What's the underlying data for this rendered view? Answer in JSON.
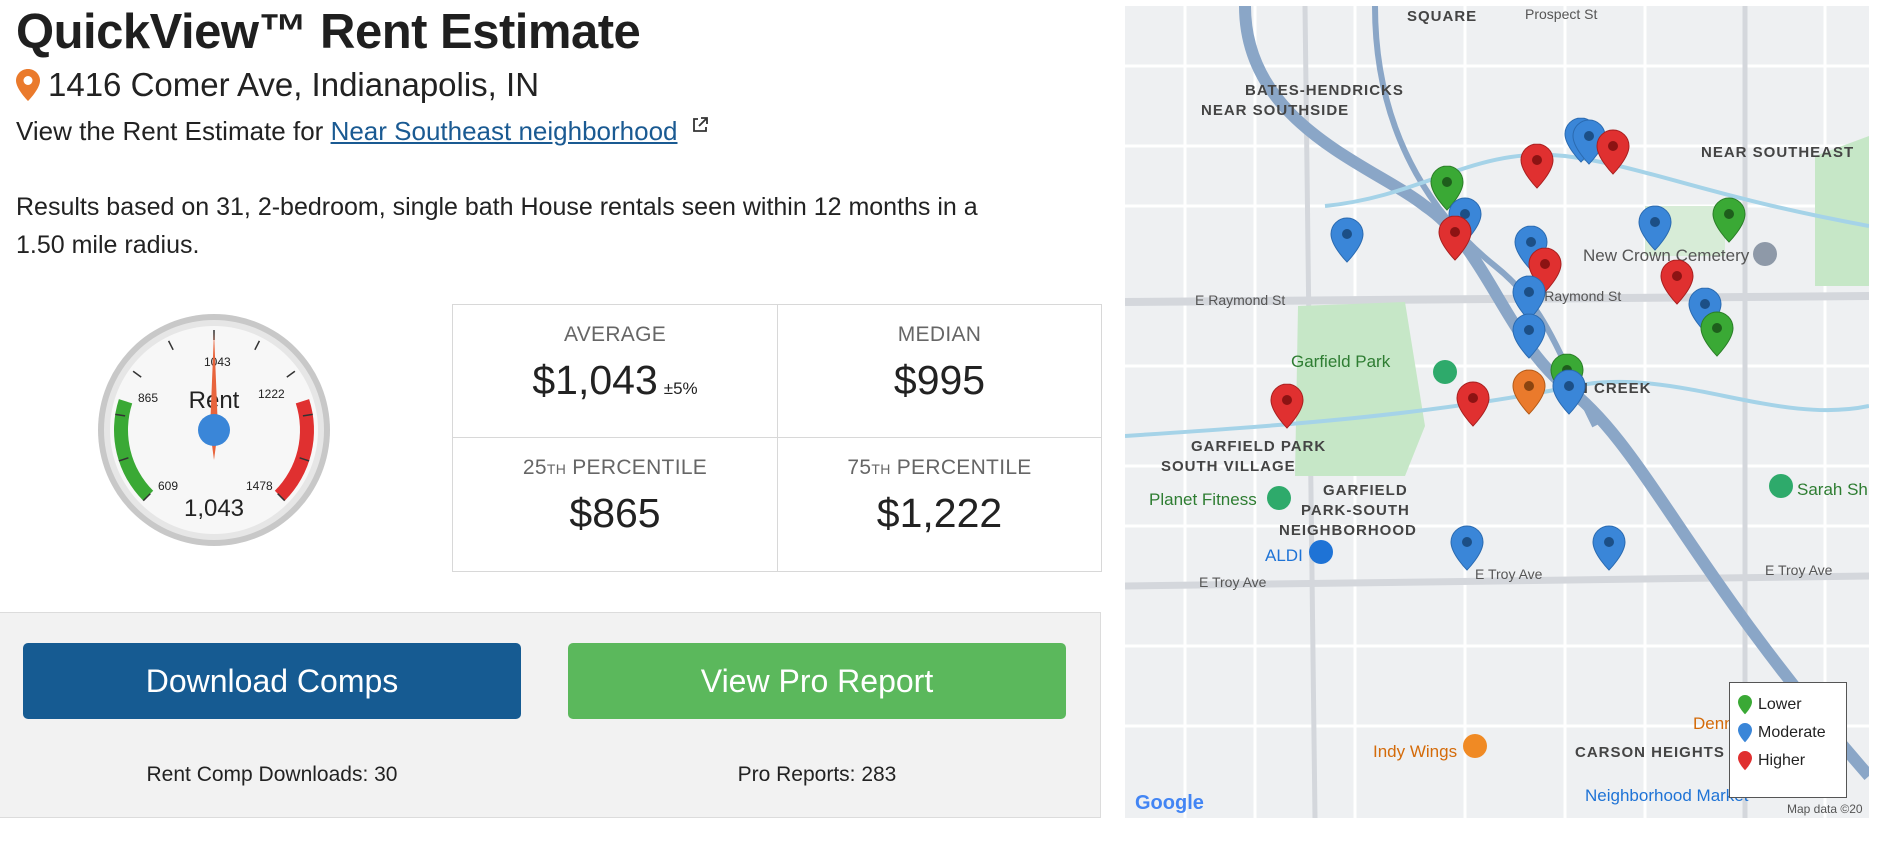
{
  "header": {
    "title": "QuickView™ Rent Estimate",
    "address": "1416 Comer Ave, Indianapolis, IN",
    "view_prefix": "View the Rent Estimate for ",
    "neighborhood_link": "Near Southeast neighborhood"
  },
  "results_text": "Results based on 31, 2-bedroom, single bath House rentals seen within 12 months in a 1.50 mile radius.",
  "gauge": {
    "center_label": "Rent",
    "value_text": "1,043",
    "marks": {
      "low": "609",
      "p25": "865",
      "avg": "1043",
      "p75": "1222",
      "high": "1478"
    },
    "colors": {
      "low": "#3aa935",
      "high": "#e03030",
      "needle": "#e8643c",
      "hub": "#3a86d8"
    }
  },
  "stats": {
    "average": {
      "label": "AVERAGE",
      "value": "$1,043",
      "pm": "±5%"
    },
    "median": {
      "label": "MEDIAN",
      "value": "$995"
    },
    "p25": {
      "num": "25",
      "suffix": "TH",
      "label": " PERCENTILE",
      "value": "$865"
    },
    "p75": {
      "num": "75",
      "suffix": "TH",
      "label": " PERCENTILE",
      "value": "$1,222"
    }
  },
  "actions": {
    "download_label": "Download Comps",
    "pro_label": "View Pro Report",
    "download_count": "Rent Comp Downloads: 30",
    "pro_count": "Pro Reports: 283",
    "colors": {
      "download": "#165b92",
      "pro": "#5bb85c"
    }
  },
  "map": {
    "labels": {
      "fountain_square": "SQUARE",
      "prospect": "Prospect St",
      "bates": "BATES-HENDRICKS",
      "near_southside": "NEAR SOUTHSIDE",
      "near_southeast": "NEAR SOUTHEAST",
      "new_crown": "New Crown Cemetery",
      "raymond_w": "E Raymond St",
      "raymond_e": "E Raymond St",
      "garfield_park": "Garfield Park",
      "bean_creek": "N CREEK",
      "gp_south_village_1": "GARFIELD PARK",
      "gp_south_village_2": "SOUTH VILLAGE",
      "planet_fitness": "Planet Fitness",
      "gpsn_1": "GARFIELD",
      "gpsn_2": "PARK-SOUTH",
      "gpsn_3": "NEIGHBORHOOD",
      "aldi": "ALDI",
      "troy_w": "E Troy Ave",
      "troy_m": "E Troy Ave",
      "troy_e": "E Troy Ave",
      "indy_wings": "Indy Wings",
      "carson_heights": "CARSON HEIGHTS",
      "dennys": "Denny's",
      "neighborhood_market": "Neighborhood Market",
      "sarah": "Sarah Sh",
      "google": "Google",
      "map_data": "Map data ©20"
    },
    "legend": [
      {
        "label": "Lower",
        "color": "#3aa935"
      },
      {
        "label": "Moderate",
        "color": "#3a86d8"
      },
      {
        "label": "Higher",
        "color": "#e03030"
      }
    ]
  }
}
